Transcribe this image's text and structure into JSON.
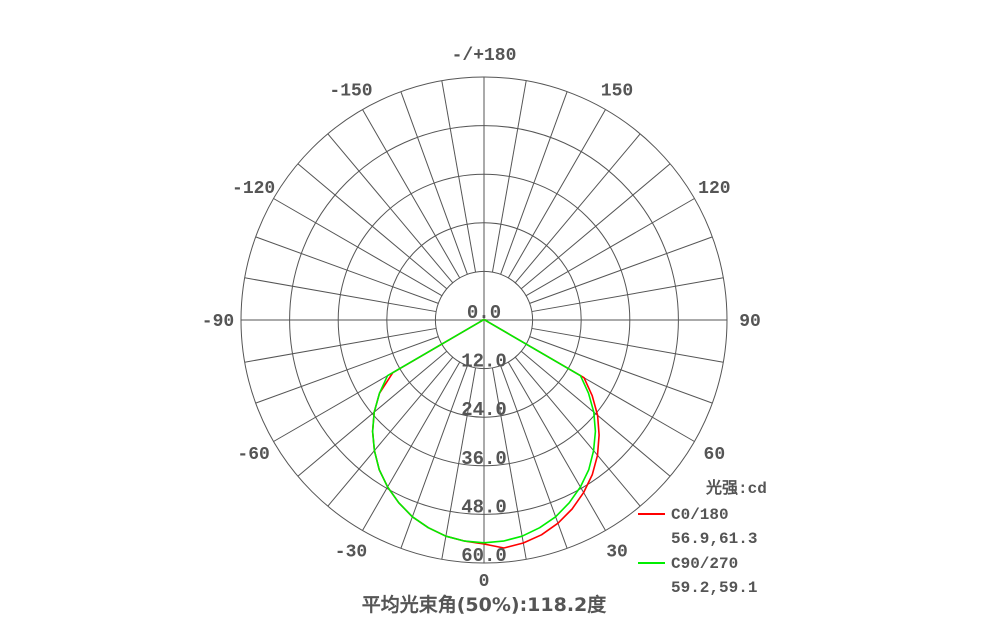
{
  "chart_data": {
    "type": "polar",
    "title": "平均光束角(50%):118.2度",
    "unit_label": "光强:cd",
    "angle_labels": [
      "-/+180",
      "150",
      "120",
      "90",
      "60",
      "30",
      "0",
      "-30",
      "-60",
      "-90",
      "-120",
      "-150"
    ],
    "radial_labels": [
      "0.0",
      "12.0",
      "24.0",
      "36.0",
      "48.0",
      "60.0"
    ],
    "radial_range": [
      0,
      60
    ],
    "grid": true,
    "legend_position": "bottom-right",
    "angles": [
      -90,
      -85,
      -80,
      -75,
      -70,
      -65,
      -60,
      -55,
      -50,
      -45,
      -40,
      -35,
      -30,
      -25,
      -20,
      -15,
      -10,
      -5,
      0,
      5,
      10,
      15,
      20,
      25,
      30,
      35,
      40,
      45,
      50,
      55,
      60,
      65,
      70,
      75,
      80,
      85,
      90
    ],
    "series": [
      {
        "name": "C0/180",
        "detail": "56.9,61.3",
        "color": "#ff0000",
        "values": [
          0.5,
          0.5,
          0.5,
          0.5,
          0.5,
          1,
          26,
          31.5,
          35.4,
          38.9,
          42.1,
          45.1,
          47.6,
          49.8,
          51.7,
          53.1,
          54.2,
          54.8,
          55.3,
          56.5,
          55.9,
          54.9,
          53.4,
          51.5,
          49.2,
          46.6,
          43.6,
          40.2,
          36.6,
          32.6,
          28.5,
          1,
          0.5,
          0.5,
          0.5,
          0.5,
          0.5
        ]
      },
      {
        "name": "C90/270",
        "detail": "59.2,59.1",
        "color": "#00ee00",
        "values": [
          0.5,
          0.5,
          0.5,
          0.5,
          0.5,
          1,
          27.5,
          31.5,
          35.4,
          38.9,
          42.1,
          45.1,
          47.6,
          49.8,
          51.7,
          53.1,
          54.2,
          54.8,
          55,
          54.8,
          54.2,
          53.1,
          51.7,
          49.8,
          47.6,
          45.1,
          42.1,
          38.9,
          35.4,
          31.5,
          27.5,
          1,
          0.5,
          0.5,
          0.5,
          0.5,
          0.5
        ]
      }
    ]
  }
}
